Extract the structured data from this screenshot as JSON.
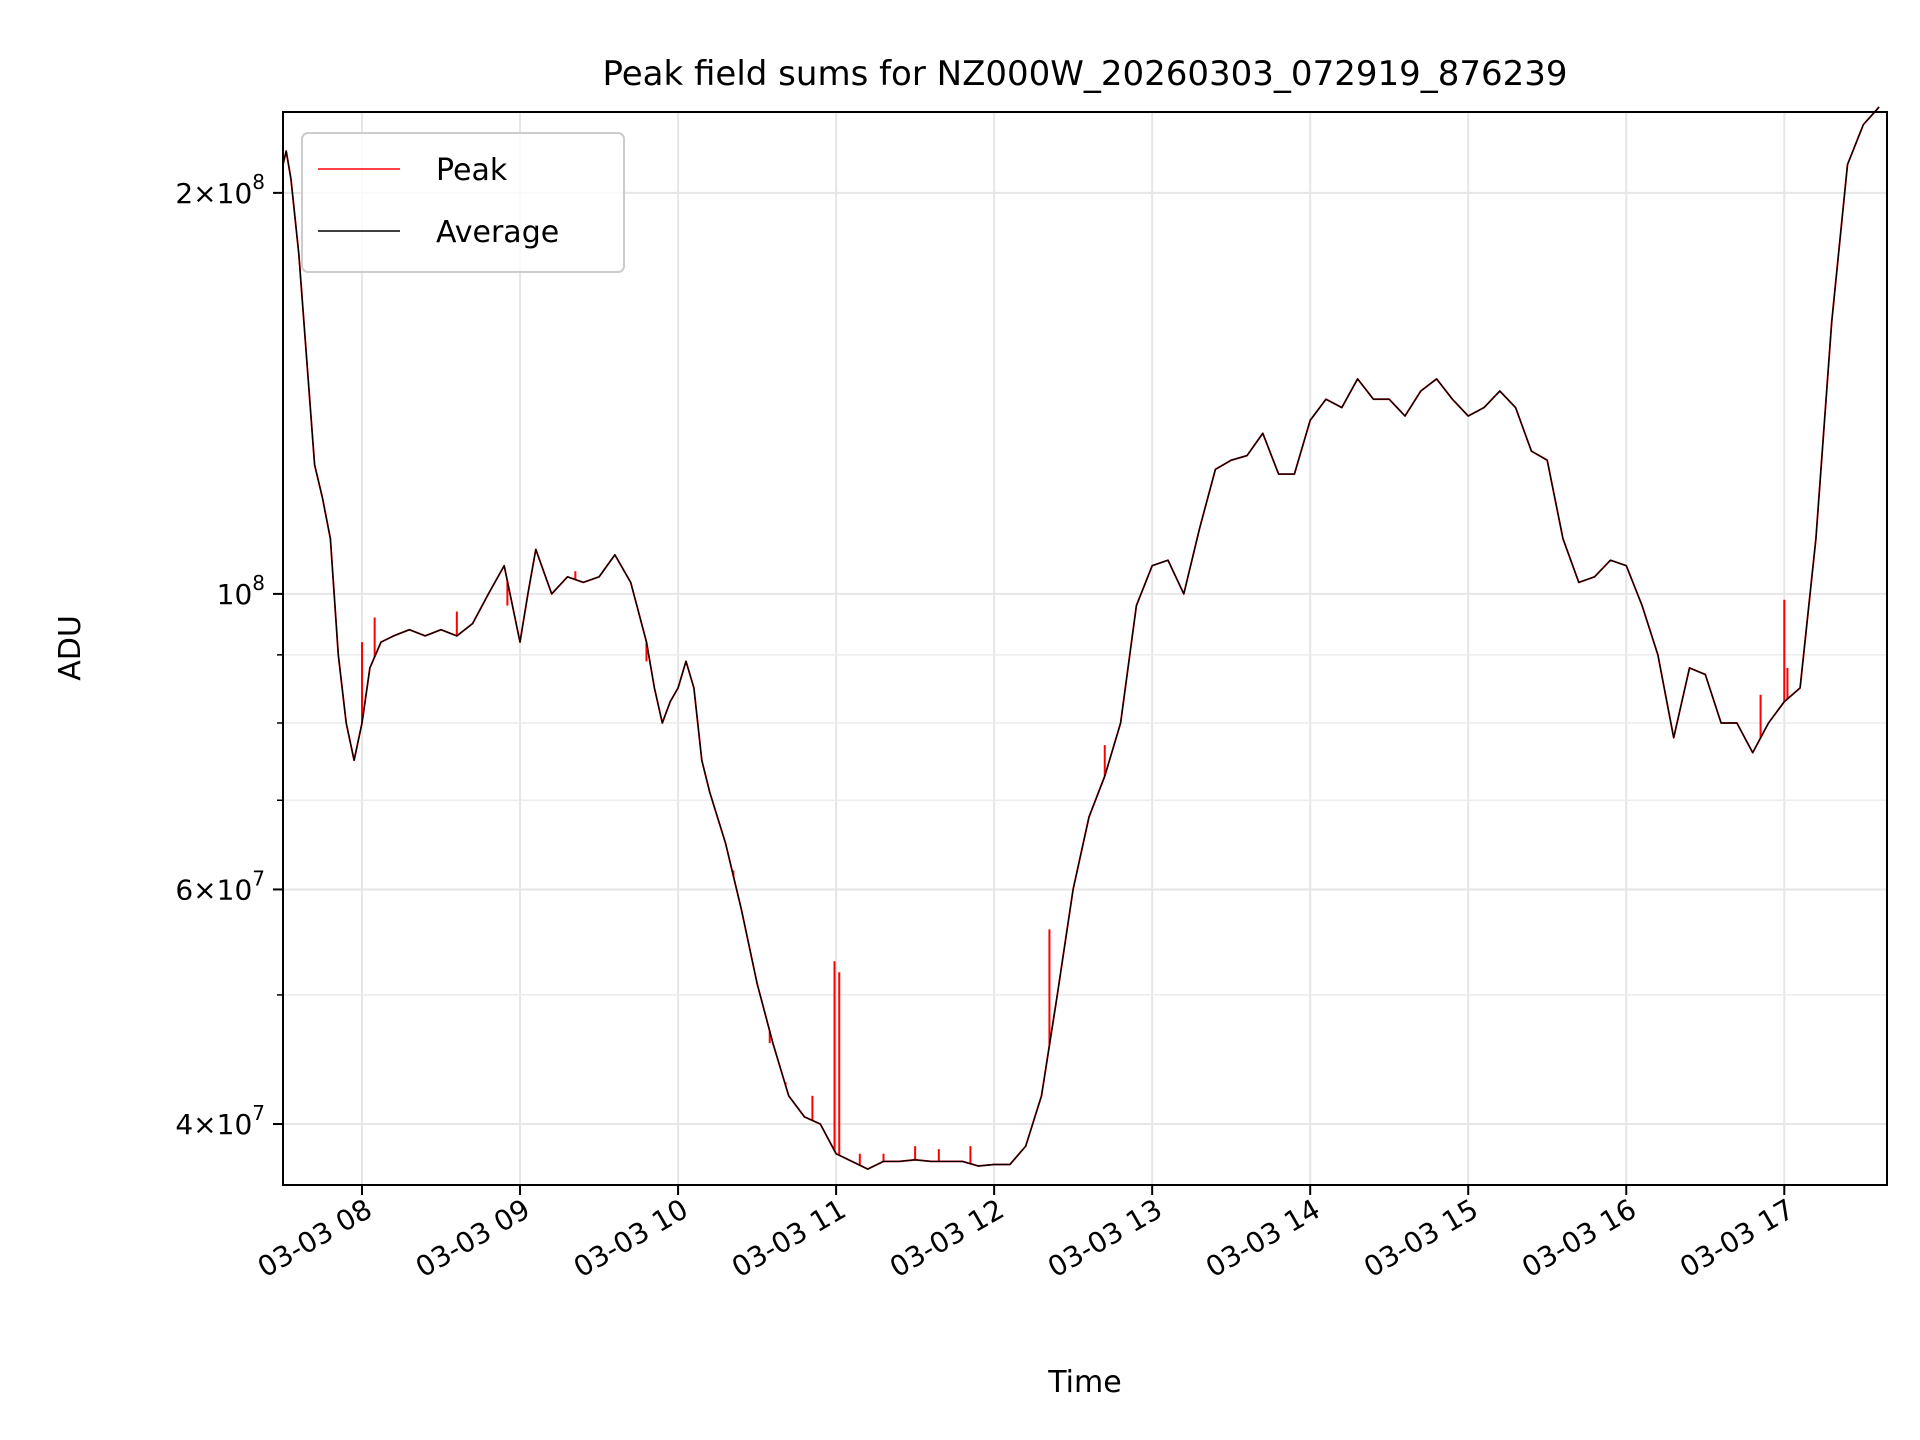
{
  "chart_data": {
    "type": "line",
    "title": "Peak field sums for NZ000W_20260303_072919_876239",
    "xlabel": "Time",
    "ylabel": "ADU",
    "yscale": "log",
    "ylim": [
      36000000,
      230000000
    ],
    "xlim": [
      7.5,
      17.65
    ],
    "x_unit": "hour of 2026-03-03",
    "grid": true,
    "legend_position": "upper-left",
    "x_ticks": [
      {
        "value": 8,
        "label": "03-03 08"
      },
      {
        "value": 9,
        "label": "03-03 09"
      },
      {
        "value": 10,
        "label": "03-03 10"
      },
      {
        "value": 11,
        "label": "03-03 11"
      },
      {
        "value": 12,
        "label": "03-03 12"
      },
      {
        "value": 13,
        "label": "03-03 13"
      },
      {
        "value": 14,
        "label": "03-03 14"
      },
      {
        "value": 15,
        "label": "03-03 15"
      },
      {
        "value": 16,
        "label": "03-03 16"
      },
      {
        "value": 17,
        "label": "03-03 17"
      }
    ],
    "y_major_ticks": [
      {
        "value": 40000000,
        "mantissa": "4",
        "exponent": "7"
      },
      {
        "value": 60000000,
        "mantissa": "6",
        "exponent": "7"
      },
      {
        "value": 100000000,
        "mantissa": "",
        "exponent": "8"
      },
      {
        "value": 200000000,
        "mantissa": "2",
        "exponent": "8"
      }
    ],
    "y_minor_ticks": [
      50000000,
      70000000,
      80000000,
      90000000
    ],
    "series": [
      {
        "name": "Peak",
        "color": "#ff0000",
        "spikes": [
          [
            8.0,
            92000000
          ],
          [
            8.08,
            96000000
          ],
          [
            8.6,
            97000000
          ],
          [
            8.92,
            98000000
          ],
          [
            9.35,
            104000000
          ],
          [
            9.8,
            89000000
          ],
          [
            10.35,
            62000000
          ],
          [
            10.58,
            46000000
          ],
          [
            10.68,
            43000000
          ],
          [
            10.85,
            42000000
          ],
          [
            10.99,
            53000000
          ],
          [
            11.02,
            52000000
          ],
          [
            11.15,
            38000000
          ],
          [
            11.3,
            38000000
          ],
          [
            11.5,
            38500000
          ],
          [
            11.65,
            38300000
          ],
          [
            11.85,
            38500000
          ],
          [
            12.35,
            56000000
          ],
          [
            12.7,
            77000000
          ],
          [
            16.85,
            84000000
          ],
          [
            17.0,
            99000000
          ],
          [
            17.02,
            88000000
          ]
        ],
        "values": [
          [
            7.5,
            210000000
          ],
          [
            7.52,
            215000000
          ],
          [
            7.55,
            205000000
          ],
          [
            7.6,
            180000000
          ],
          [
            7.65,
            150000000
          ],
          [
            7.7,
            125000000
          ],
          [
            7.75,
            118000000
          ],
          [
            7.8,
            110000000
          ],
          [
            7.85,
            90000000
          ],
          [
            7.9,
            80000000
          ],
          [
            7.95,
            75000000
          ],
          [
            8.0,
            80000000
          ],
          [
            8.05,
            88000000
          ],
          [
            8.12,
            92000000
          ],
          [
            8.2,
            93000000
          ],
          [
            8.3,
            94000000
          ],
          [
            8.4,
            93000000
          ],
          [
            8.5,
            94000000
          ],
          [
            8.6,
            93000000
          ],
          [
            8.7,
            95000000
          ],
          [
            8.8,
            100000000
          ],
          [
            8.9,
            105000000
          ],
          [
            9.0,
            92000000
          ],
          [
            9.05,
            100000000
          ],
          [
            9.1,
            108000000
          ],
          [
            9.2,
            100000000
          ],
          [
            9.3,
            103000000
          ],
          [
            9.4,
            102000000
          ],
          [
            9.5,
            103000000
          ],
          [
            9.6,
            107000000
          ],
          [
            9.7,
            102000000
          ],
          [
            9.8,
            92000000
          ],
          [
            9.85,
            85000000
          ],
          [
            9.9,
            80000000
          ],
          [
            9.95,
            83000000
          ],
          [
            10.0,
            85000000
          ],
          [
            10.05,
            89000000
          ],
          [
            10.1,
            85000000
          ],
          [
            10.15,
            75000000
          ],
          [
            10.2,
            71000000
          ],
          [
            10.3,
            65000000
          ],
          [
            10.4,
            58000000
          ],
          [
            10.5,
            51000000
          ],
          [
            10.6,
            46000000
          ],
          [
            10.7,
            42000000
          ],
          [
            10.8,
            40500000
          ],
          [
            10.9,
            40000000
          ],
          [
            11.0,
            38000000
          ],
          [
            11.1,
            37500000
          ],
          [
            11.2,
            37000000
          ],
          [
            11.3,
            37500000
          ],
          [
            11.4,
            37500000
          ],
          [
            11.5,
            37600000
          ],
          [
            11.6,
            37500000
          ],
          [
            11.7,
            37500000
          ],
          [
            11.8,
            37500000
          ],
          [
            11.9,
            37200000
          ],
          [
            12.0,
            37300000
          ],
          [
            12.1,
            37300000
          ],
          [
            12.2,
            38500000
          ],
          [
            12.3,
            42000000
          ],
          [
            12.4,
            50000000
          ],
          [
            12.5,
            60000000
          ],
          [
            12.6,
            68000000
          ],
          [
            12.7,
            73000000
          ],
          [
            12.8,
            80000000
          ],
          [
            12.9,
            98000000
          ],
          [
            13.0,
            105000000
          ],
          [
            13.1,
            106000000
          ],
          [
            13.2,
            100000000
          ],
          [
            13.3,
            112000000
          ],
          [
            13.4,
            124000000
          ],
          [
            13.5,
            126000000
          ],
          [
            13.6,
            127000000
          ],
          [
            13.7,
            132000000
          ],
          [
            13.8,
            123000000
          ],
          [
            13.9,
            123000000
          ],
          [
            14.0,
            135000000
          ],
          [
            14.1,
            140000000
          ],
          [
            14.2,
            138000000
          ],
          [
            14.3,
            145000000
          ],
          [
            14.4,
            140000000
          ],
          [
            14.5,
            140000000
          ],
          [
            14.6,
            136000000
          ],
          [
            14.7,
            142000000
          ],
          [
            14.8,
            145000000
          ],
          [
            14.9,
            140000000
          ],
          [
            15.0,
            136000000
          ],
          [
            15.1,
            138000000
          ],
          [
            15.2,
            142000000
          ],
          [
            15.3,
            138000000
          ],
          [
            15.4,
            128000000
          ],
          [
            15.5,
            126000000
          ],
          [
            15.6,
            110000000
          ],
          [
            15.7,
            102000000
          ],
          [
            15.8,
            103000000
          ],
          [
            15.9,
            106000000
          ],
          [
            16.0,
            105000000
          ],
          [
            16.1,
            98000000
          ],
          [
            16.2,
            90000000
          ],
          [
            16.3,
            78000000
          ],
          [
            16.4,
            88000000
          ],
          [
            16.5,
            87000000
          ],
          [
            16.6,
            80000000
          ],
          [
            16.7,
            80000000
          ],
          [
            16.8,
            76000000
          ],
          [
            16.9,
            80000000
          ],
          [
            17.0,
            83000000
          ],
          [
            17.1,
            85000000
          ],
          [
            17.2,
            110000000
          ],
          [
            17.3,
            160000000
          ],
          [
            17.4,
            210000000
          ],
          [
            17.5,
            225000000
          ],
          [
            17.6,
            232000000
          ]
        ]
      },
      {
        "name": "Average",
        "color": "#000000",
        "values": [
          [
            7.5,
            210000000
          ],
          [
            7.52,
            215000000
          ],
          [
            7.55,
            205000000
          ],
          [
            7.6,
            180000000
          ],
          [
            7.65,
            150000000
          ],
          [
            7.7,
            125000000
          ],
          [
            7.75,
            118000000
          ],
          [
            7.8,
            110000000
          ],
          [
            7.85,
            90000000
          ],
          [
            7.9,
            80000000
          ],
          [
            7.95,
            75000000
          ],
          [
            8.0,
            80000000
          ],
          [
            8.05,
            88000000
          ],
          [
            8.12,
            92000000
          ],
          [
            8.2,
            93000000
          ],
          [
            8.3,
            94000000
          ],
          [
            8.4,
            93000000
          ],
          [
            8.5,
            94000000
          ],
          [
            8.6,
            93000000
          ],
          [
            8.7,
            95000000
          ],
          [
            8.8,
            100000000
          ],
          [
            8.9,
            105000000
          ],
          [
            9.0,
            92000000
          ],
          [
            9.05,
            100000000
          ],
          [
            9.1,
            108000000
          ],
          [
            9.2,
            100000000
          ],
          [
            9.3,
            103000000
          ],
          [
            9.4,
            102000000
          ],
          [
            9.5,
            103000000
          ],
          [
            9.6,
            107000000
          ],
          [
            9.7,
            102000000
          ],
          [
            9.8,
            92000000
          ],
          [
            9.85,
            85000000
          ],
          [
            9.9,
            80000000
          ],
          [
            9.95,
            83000000
          ],
          [
            10.0,
            85000000
          ],
          [
            10.05,
            89000000
          ],
          [
            10.1,
            85000000
          ],
          [
            10.15,
            75000000
          ],
          [
            10.2,
            71000000
          ],
          [
            10.3,
            65000000
          ],
          [
            10.4,
            58000000
          ],
          [
            10.5,
            51000000
          ],
          [
            10.6,
            46000000
          ],
          [
            10.7,
            42000000
          ],
          [
            10.8,
            40500000
          ],
          [
            10.9,
            40000000
          ],
          [
            11.0,
            38000000
          ],
          [
            11.1,
            37500000
          ],
          [
            11.2,
            37000000
          ],
          [
            11.3,
            37500000
          ],
          [
            11.4,
            37500000
          ],
          [
            11.5,
            37600000
          ],
          [
            11.6,
            37500000
          ],
          [
            11.7,
            37500000
          ],
          [
            11.8,
            37500000
          ],
          [
            11.9,
            37200000
          ],
          [
            12.0,
            37300000
          ],
          [
            12.1,
            37300000
          ],
          [
            12.2,
            38500000
          ],
          [
            12.3,
            42000000
          ],
          [
            12.4,
            50000000
          ],
          [
            12.5,
            60000000
          ],
          [
            12.6,
            68000000
          ],
          [
            12.7,
            73000000
          ],
          [
            12.8,
            80000000
          ],
          [
            12.9,
            98000000
          ],
          [
            13.0,
            105000000
          ],
          [
            13.1,
            106000000
          ],
          [
            13.2,
            100000000
          ],
          [
            13.3,
            112000000
          ],
          [
            13.4,
            124000000
          ],
          [
            13.5,
            126000000
          ],
          [
            13.6,
            127000000
          ],
          [
            13.7,
            132000000
          ],
          [
            13.8,
            123000000
          ],
          [
            13.9,
            123000000
          ],
          [
            14.0,
            135000000
          ],
          [
            14.1,
            140000000
          ],
          [
            14.2,
            138000000
          ],
          [
            14.3,
            145000000
          ],
          [
            14.4,
            140000000
          ],
          [
            14.5,
            140000000
          ],
          [
            14.6,
            136000000
          ],
          [
            14.7,
            142000000
          ],
          [
            14.8,
            145000000
          ],
          [
            14.9,
            140000000
          ],
          [
            15.0,
            136000000
          ],
          [
            15.1,
            138000000
          ],
          [
            15.2,
            142000000
          ],
          [
            15.3,
            138000000
          ],
          [
            15.4,
            128000000
          ],
          [
            15.5,
            126000000
          ],
          [
            15.6,
            110000000
          ],
          [
            15.7,
            102000000
          ],
          [
            15.8,
            103000000
          ],
          [
            15.9,
            106000000
          ],
          [
            16.0,
            105000000
          ],
          [
            16.1,
            98000000
          ],
          [
            16.2,
            90000000
          ],
          [
            16.3,
            78000000
          ],
          [
            16.4,
            88000000
          ],
          [
            16.5,
            87000000
          ],
          [
            16.6,
            80000000
          ],
          [
            16.7,
            80000000
          ],
          [
            16.8,
            76000000
          ],
          [
            16.9,
            80000000
          ],
          [
            17.0,
            83000000
          ],
          [
            17.1,
            85000000
          ],
          [
            17.2,
            110000000
          ],
          [
            17.3,
            160000000
          ],
          [
            17.4,
            210000000
          ],
          [
            17.5,
            225000000
          ],
          [
            17.6,
            232000000
          ]
        ]
      }
    ]
  }
}
